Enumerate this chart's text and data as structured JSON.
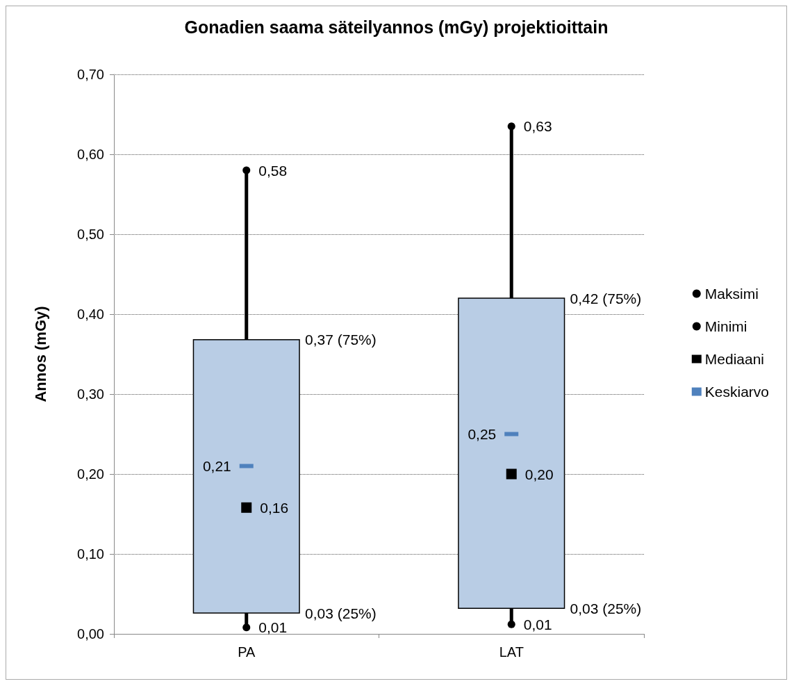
{
  "chart_data": {
    "type": "box",
    "title": "Gonadien saama säteilyannos (mGy) projektioittain",
    "ylabel": "Annos (mGy)",
    "categories": [
      "PA",
      "LAT"
    ],
    "ylim": [
      0,
      0.7
    ],
    "yticks": [
      {
        "value": 0,
        "label": "0,00"
      },
      {
        "value": 0.1,
        "label": "0,10"
      },
      {
        "value": 0.2,
        "label": "0,20"
      },
      {
        "value": 0.3,
        "label": "0,30"
      },
      {
        "value": 0.4,
        "label": "0,40"
      },
      {
        "value": 0.5,
        "label": "0,50"
      },
      {
        "value": 0.6,
        "label": "0,60"
      },
      {
        "value": 0.7,
        "label": "0,70"
      }
    ],
    "grid": "y",
    "legend": "right",
    "series": [
      {
        "color": "#b9cde5",
        "boxes": [
          {
            "low": 0.008,
            "q1": 0.026,
            "q3": 0.368,
            "high": 0.58
          },
          {
            "low": 0.012,
            "q1": 0.032,
            "q3": 0.42,
            "high": 0.635
          }
        ]
      },
      {
        "type": "scatter",
        "name": "Maksimi",
        "color": "#000000",
        "marker": "circle",
        "x": [
          "PA",
          "LAT"
        ],
        "values": [
          0.58,
          0.635
        ],
        "value_labels": [
          "0,58",
          "0,63"
        ]
      },
      {
        "type": "scatter",
        "name": "Minimi",
        "color": "#000000",
        "marker": "circle",
        "x": [
          "PA",
          "LAT"
        ],
        "values": [
          0.008,
          0.012
        ],
        "value_labels": [
          "0,01",
          "0,01"
        ]
      },
      {
        "type": "scatter",
        "name": "Mediaani",
        "color": "#000000",
        "marker": "square",
        "x": [
          "PA",
          "LAT"
        ],
        "values": [
          0.158,
          0.2
        ],
        "value_labels": [
          "0,16",
          "0,20"
        ]
      },
      {
        "type": "scatter",
        "name": "Keskiarvo",
        "color": "#4f81bd",
        "marker": "square",
        "x": [
          "PA",
          "LAT"
        ],
        "values": [
          0.21,
          0.25
        ],
        "value_labels": [
          "0,21",
          "0,25"
        ]
      }
    ],
    "annotations": [
      "0,37 (75%)",
      "0,03 (25%)",
      "0,42 (75%)",
      "0,03 (25%)"
    ]
  }
}
